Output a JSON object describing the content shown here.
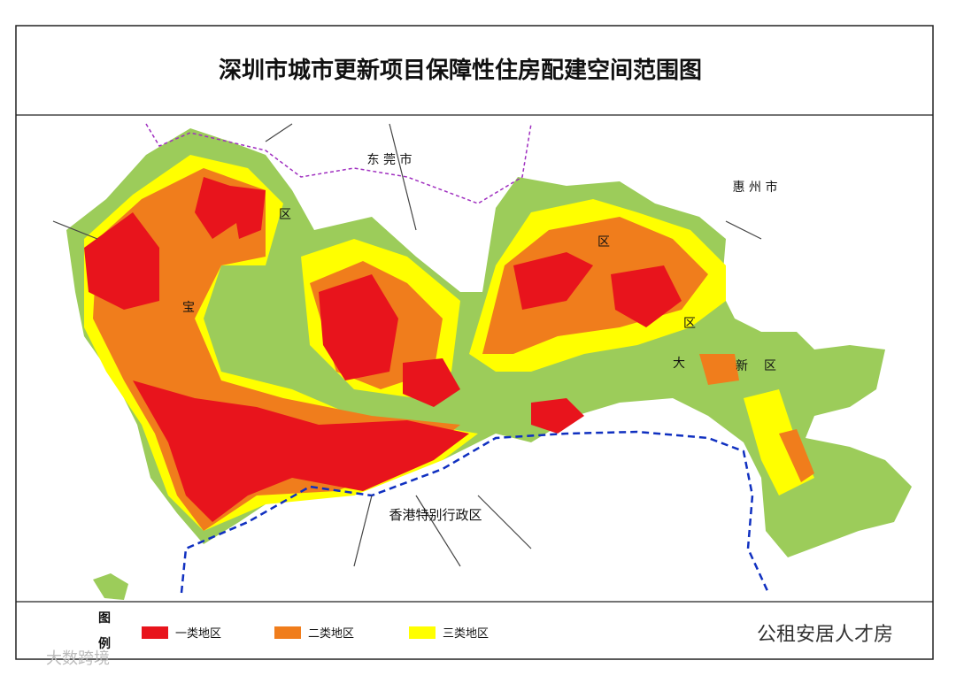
{
  "header": {
    "title": "深圳市城市更新项目保障性住房配建空间范围图"
  },
  "map": {
    "labels": [
      "东 莞 市",
      "惠 州 市",
      "香港特别行政区",
      "宝",
      "区",
      "区",
      "区",
      "大",
      "新",
      "区"
    ]
  },
  "legend": {
    "heading": [
      "图",
      "例"
    ],
    "items": [
      "一类地区",
      "二类地区",
      "三类地区"
    ]
  },
  "watermarks": [
    "公租安居人才房",
    "大数跨境"
  ]
}
